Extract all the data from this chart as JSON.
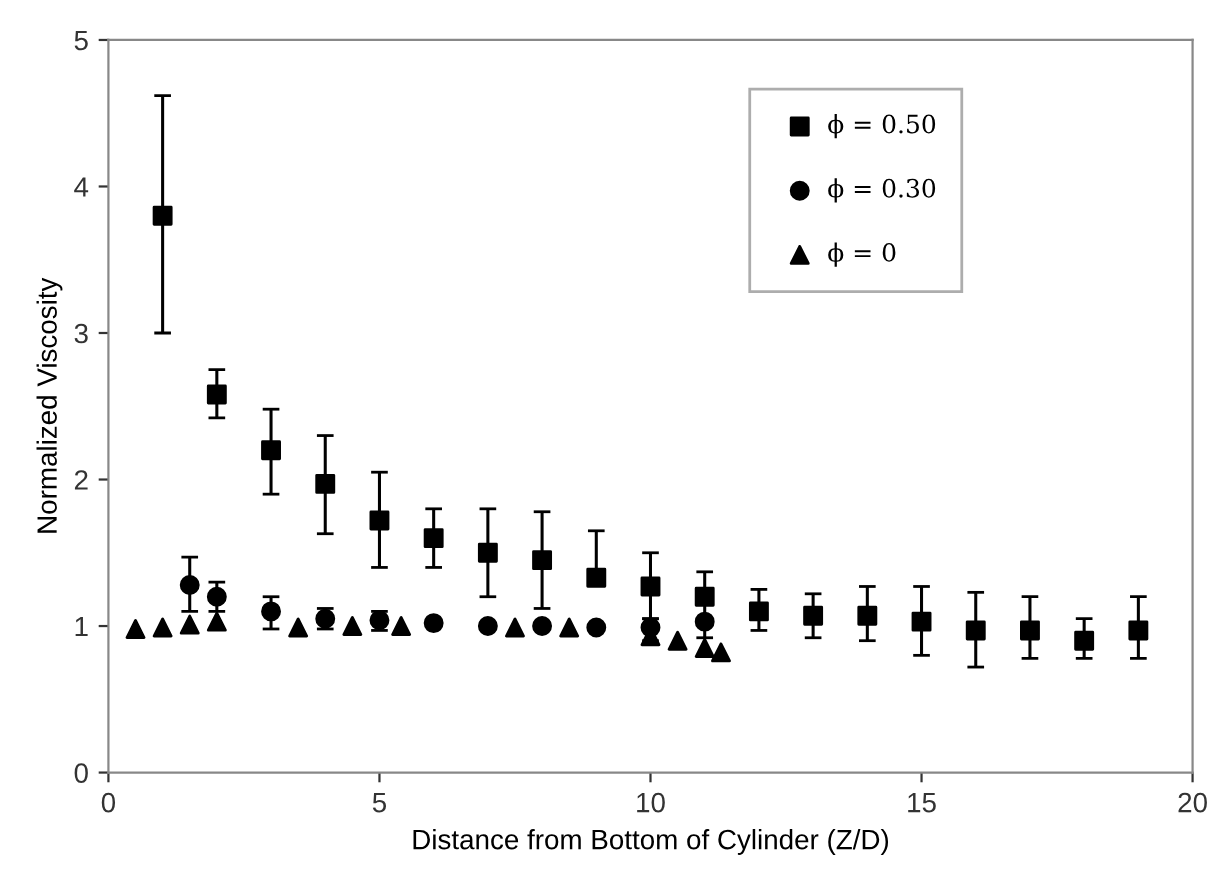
{
  "chart_data": {
    "type": "scatter",
    "xlabel": "Distance from Bottom of Cylinder (Z/D)",
    "ylabel": "Normalized Viscosity",
    "xlim": [
      0,
      20
    ],
    "ylim": [
      0,
      5
    ],
    "xticks": [
      0,
      5,
      10,
      15,
      20
    ],
    "yticks": [
      0,
      1,
      2,
      3,
      4,
      5
    ],
    "grid": false,
    "legend": "top right",
    "series": [
      {
        "name": "ϕ = 0.50",
        "color": "#000000",
        "marker": "square",
        "x": [
          1,
          2,
          3,
          4,
          5,
          6,
          7,
          8,
          9,
          10,
          11,
          12,
          13,
          14,
          15,
          16,
          17,
          18,
          19
        ],
        "values": [
          3.8,
          2.58,
          2.2,
          1.97,
          1.72,
          1.6,
          1.5,
          1.45,
          1.33,
          1.27,
          1.2,
          1.1,
          1.07,
          1.07,
          1.03,
          0.97,
          0.97,
          0.9,
          0.97
        ],
        "errors": [
          [
            3.0,
            4.62
          ],
          [
            2.42,
            2.75
          ],
          [
            1.9,
            2.48
          ],
          [
            1.63,
            2.3
          ],
          [
            1.4,
            2.05
          ],
          [
            1.4,
            1.8
          ],
          [
            1.2,
            1.8
          ],
          [
            1.12,
            1.78
          ],
          [
            1.33,
            1.65
          ],
          [
            1.05,
            1.5
          ],
          [
            1.2,
            1.37
          ],
          [
            0.97,
            1.25
          ],
          [
            0.92,
            1.22
          ],
          [
            0.9,
            1.27
          ],
          [
            0.8,
            1.27
          ],
          [
            0.72,
            1.23
          ],
          [
            0.78,
            1.2
          ],
          [
            0.78,
            1.05
          ],
          [
            0.78,
            1.2
          ]
        ]
      },
      {
        "name": "ϕ = 0.30",
        "color": "#000000",
        "marker": "circle",
        "x": [
          1.5,
          2,
          3,
          4,
          5,
          6,
          7,
          8,
          9,
          10,
          11
        ],
        "values": [
          1.28,
          1.2,
          1.1,
          1.05,
          1.04,
          1.02,
          1.0,
          1.0,
          0.99,
          0.99,
          1.03
        ],
        "errors": [
          [
            1.1,
            1.47
          ],
          [
            1.1,
            1.3
          ],
          [
            0.98,
            1.2
          ],
          [
            0.98,
            1.12
          ],
          [
            0.97,
            1.1
          ],
          null,
          null,
          null,
          null,
          [
            0.9,
            1.05
          ],
          [
            0.92,
            1.15
          ]
        ]
      },
      {
        "name": "ϕ = 0",
        "color": "#000000",
        "marker": "triangle",
        "x": [
          0.5,
          1,
          1.5,
          2,
          3.5,
          4.5,
          5.4,
          7.5,
          8.5,
          10,
          10.5,
          11,
          11.3
        ],
        "values": [
          0.98,
          0.99,
          1.01,
          1.03,
          0.99,
          1.0,
          1.0,
          0.99,
          0.99,
          0.93,
          0.9,
          0.85,
          0.82
        ]
      }
    ]
  }
}
